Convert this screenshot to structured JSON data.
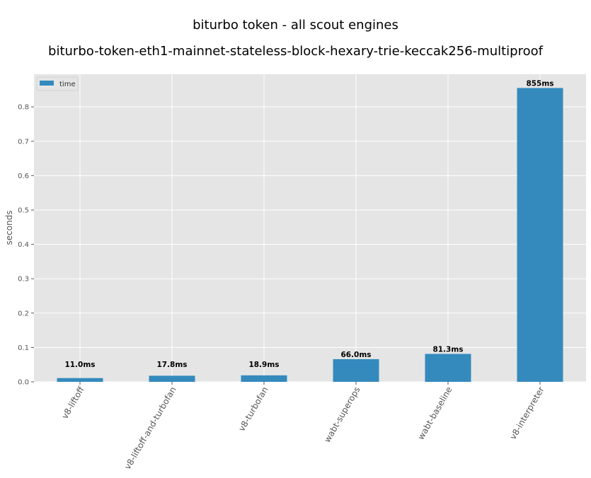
{
  "chart_data": {
    "type": "bar",
    "title": "biturbo token - all scout engines",
    "subtitle": "biturbo-token-eth1-mainnet-stateless-block-hexary-trie-keccak256-multiproof",
    "xlabel": "",
    "ylabel": "seconds",
    "categories": [
      "v8-liftoff",
      "v8-liftoff-and-turbofan",
      "v8-turbofan",
      "wabt-superops",
      "wabt-baseline",
      "v8-interpreter"
    ],
    "series": [
      {
        "name": "time",
        "values": [
          0.011,
          0.0178,
          0.0189,
          0.066,
          0.0813,
          0.855
        ],
        "labels": [
          "11.0ms",
          "17.8ms",
          "18.9ms",
          "66.0ms",
          "81.3ms",
          "855ms"
        ]
      }
    ],
    "ylim": [
      0,
      0.895
    ],
    "yticks": [
      0.0,
      0.1,
      0.2,
      0.3,
      0.4,
      0.5,
      0.6,
      0.7,
      0.8
    ],
    "ytick_labels": [
      "0.0",
      "0.1",
      "0.2",
      "0.3",
      "0.4",
      "0.5",
      "0.6",
      "0.7",
      "0.8"
    ],
    "grid": true,
    "legend": "top-left",
    "colors": {
      "bar": "#348abd",
      "plot_bg": "#e5e5e5",
      "grid": "#ffffff"
    }
  }
}
